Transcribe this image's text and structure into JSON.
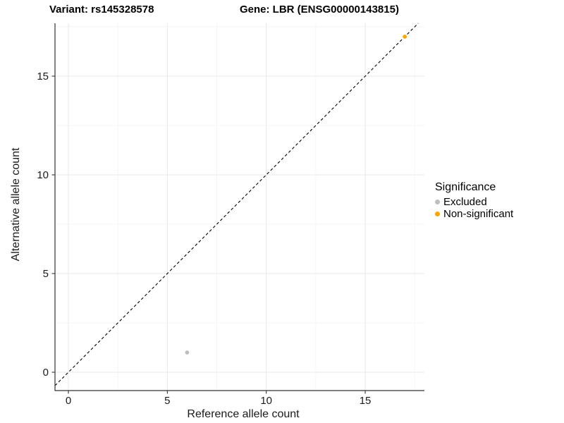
{
  "titles": {
    "left": "Variant: rs145328578",
    "right": "Gene: LBR (ENSG00000143815)"
  },
  "chart_data": {
    "type": "scatter",
    "xlabel": "Reference allele count",
    "ylabel": "Alternative allele count",
    "xlim": [
      -0.68,
      18.0
    ],
    "ylim": [
      -0.93,
      17.68
    ],
    "xticks": [
      0,
      5,
      10,
      15
    ],
    "yticks": [
      0,
      5,
      10,
      15
    ],
    "minor_xticks": [
      2.5,
      7.5,
      12.5,
      17.5
    ],
    "minor_yticks": [
      2.5,
      7.5,
      12.5,
      17.5
    ],
    "grid": true,
    "identity_line": {
      "equation": "y = x",
      "style": "dashed",
      "color": "#000000"
    },
    "series": [
      {
        "name": "Excluded",
        "color": "#BEBEBE",
        "points": [
          {
            "x": 6,
            "y": 1
          }
        ]
      },
      {
        "name": "Non-significant",
        "color": "#FFA500",
        "points": [
          {
            "x": 17,
            "y": 17
          }
        ]
      }
    ],
    "legend": {
      "title": "Significance",
      "position": "right"
    },
    "colors": {
      "axis_line": "#333333",
      "major_grid": "#e8e8e8",
      "minor_grid": "#f3f3f3",
      "tick": "#333333"
    }
  }
}
